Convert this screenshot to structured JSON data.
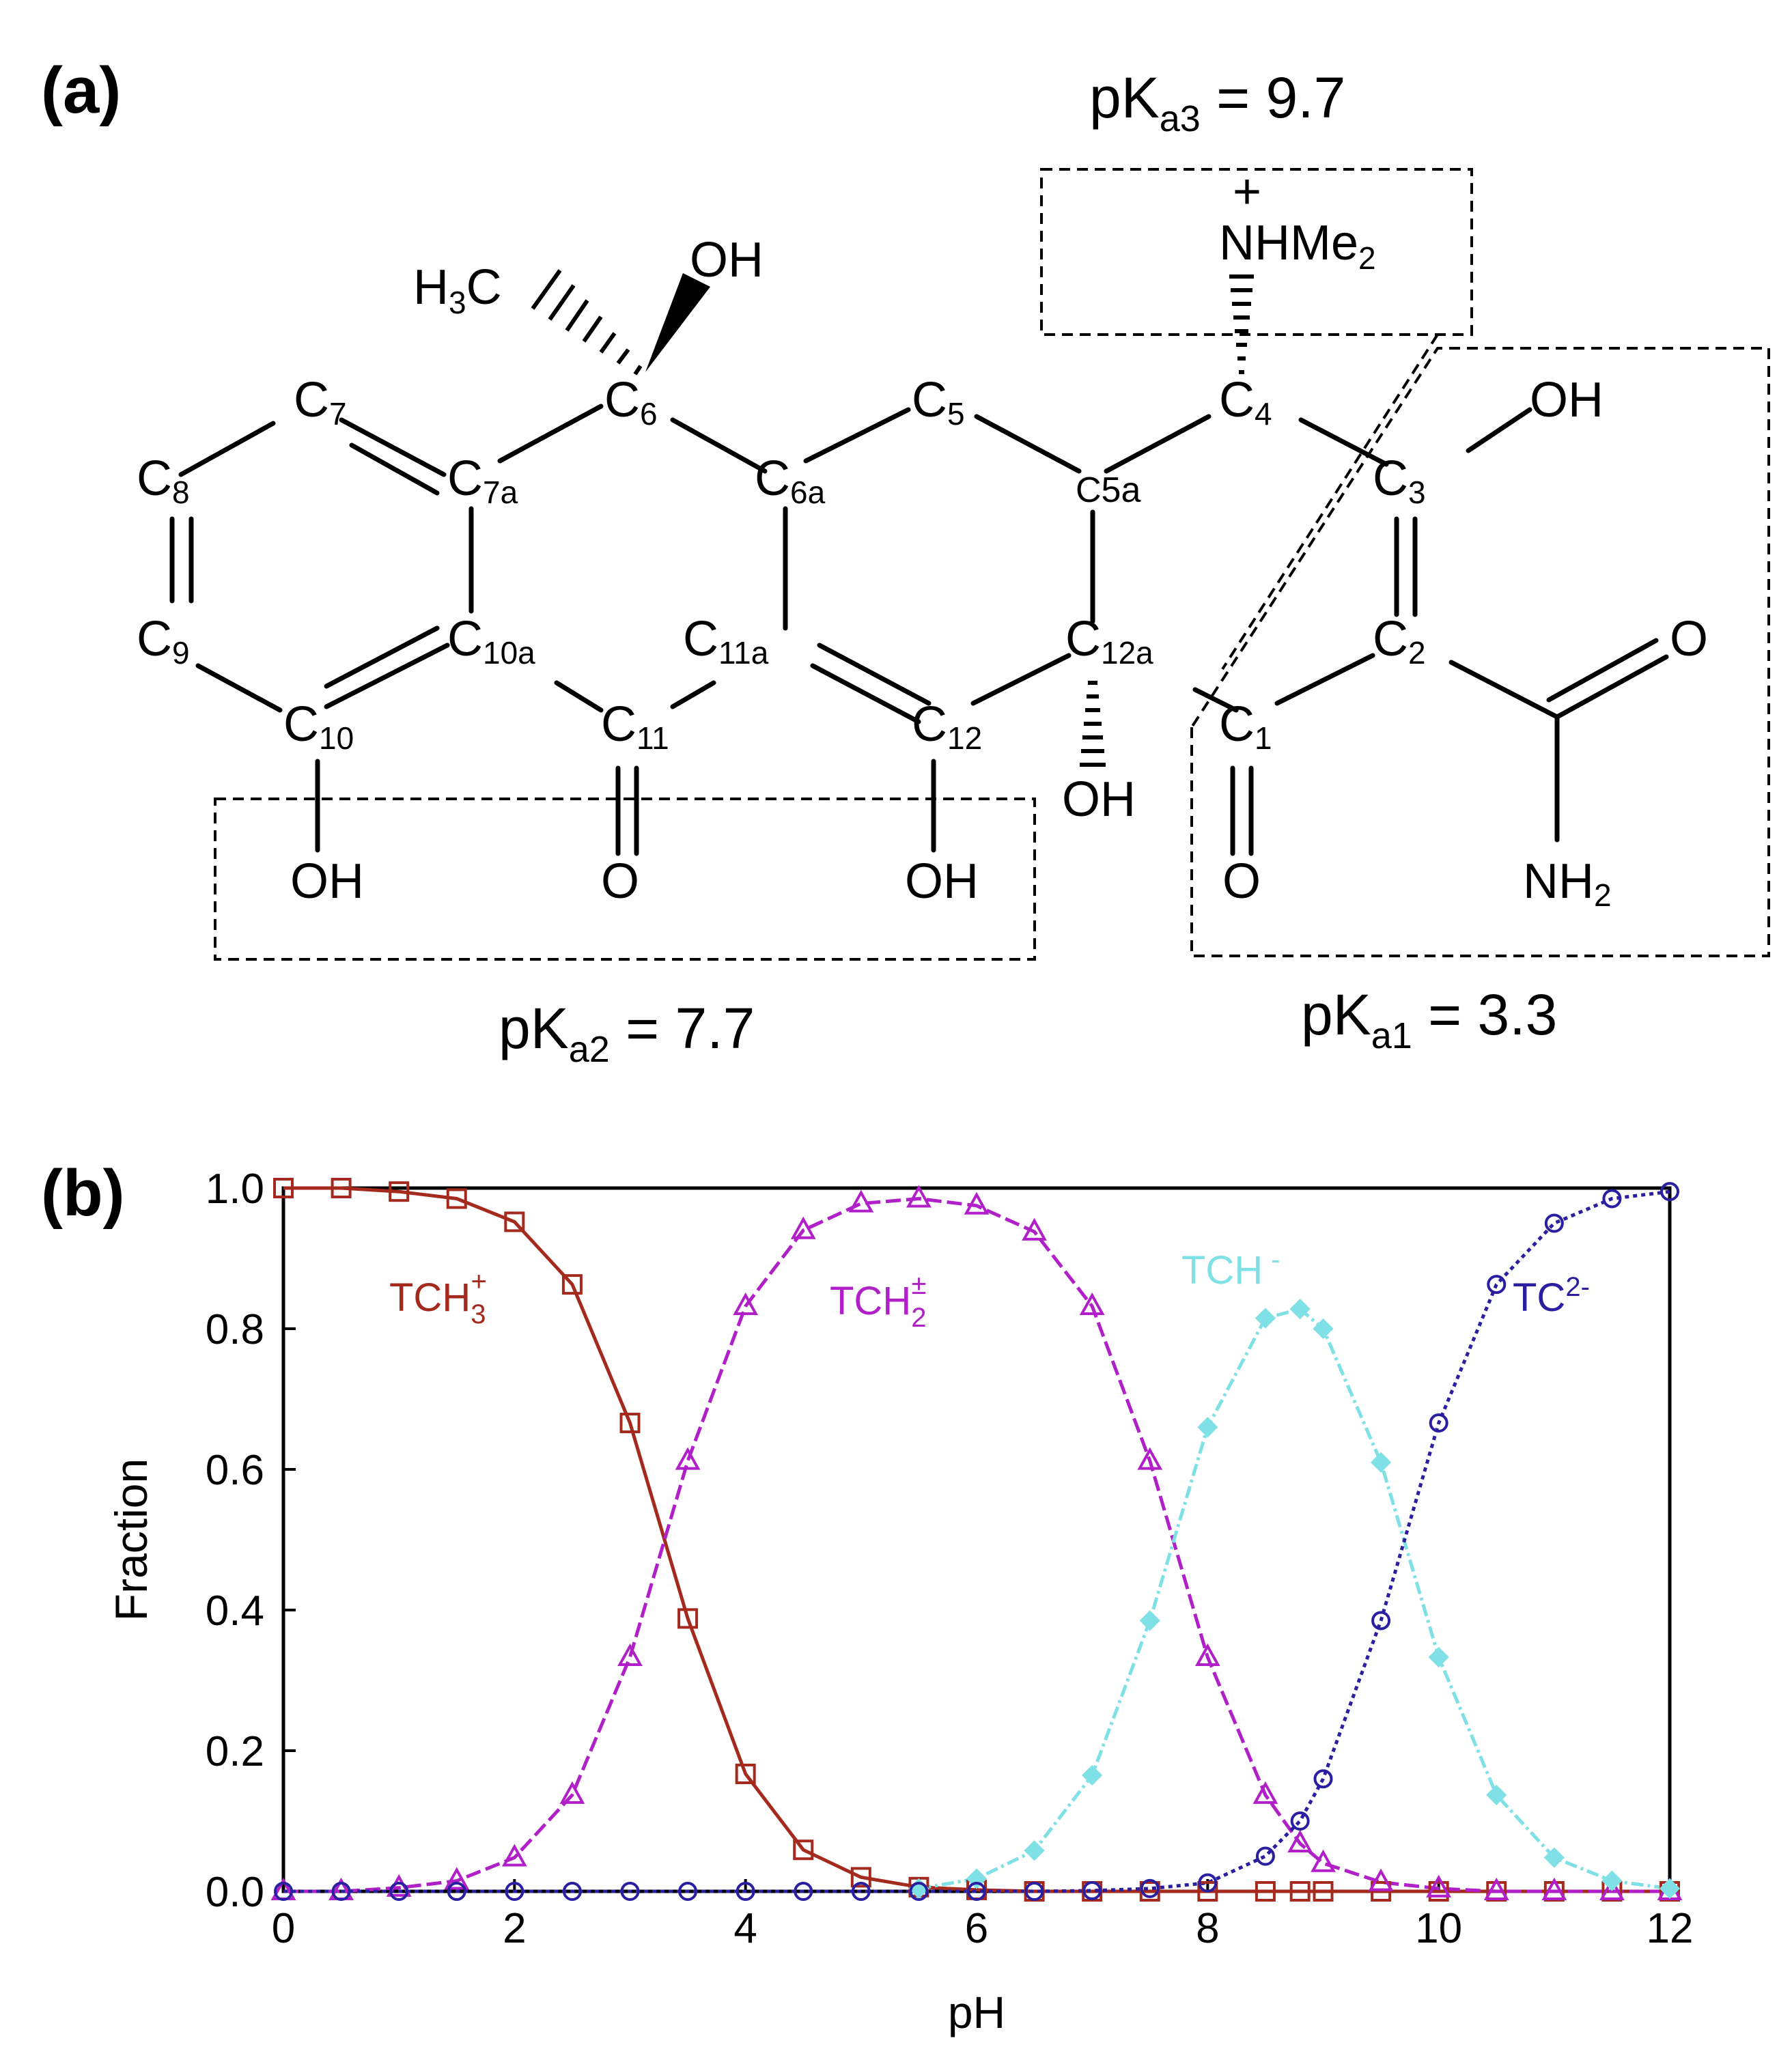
{
  "figure": {
    "panel_a_label": "(a)",
    "panel_b_label": "(b)"
  },
  "molecule": {
    "pka3": {
      "main": "pK",
      "sub": "a3",
      "value": " = 9.7"
    },
    "pka2": {
      "main": "pK",
      "sub": "a2",
      "value": " = 7.7"
    },
    "pka1": {
      "main": "pK",
      "sub": "a1",
      "value": " = 3.3"
    },
    "atoms": {
      "h3c": {
        "a": "H",
        "b": "3",
        "c": "C"
      },
      "oh_c6": "OH",
      "nhme2": {
        "charge": "+",
        "main": "NHMe",
        "sub": "2"
      },
      "c7": {
        "main": "C",
        "sub": "7"
      },
      "c6": {
        "main": "C",
        "sub": "6"
      },
      "c5": {
        "main": "C",
        "sub": "5"
      },
      "c4": {
        "main": "C",
        "sub": "4"
      },
      "oh_c3": "OH",
      "c8": {
        "main": "C",
        "sub": "8"
      },
      "c7a": {
        "main": "C",
        "sub": "7a"
      },
      "c6a": {
        "main": "C",
        "sub": "6a"
      },
      "c5a": "C5a",
      "c3": {
        "main": "C",
        "sub": "3"
      },
      "c9": {
        "main": "C",
        "sub": "9"
      },
      "c10a": {
        "main": "C",
        "sub": "10a"
      },
      "c11a": {
        "main": "C",
        "sub": "11a"
      },
      "c12a": {
        "main": "C",
        "sub": "12a"
      },
      "c2": {
        "main": "C",
        "sub": "2"
      },
      "o_c2": "O",
      "c10": {
        "main": "C",
        "sub": "10"
      },
      "c11": {
        "main": "C",
        "sub": "11"
      },
      "c12": {
        "main": "C",
        "sub": "12"
      },
      "c1": {
        "main": "C",
        "sub": "1"
      },
      "oh_c12a": "OH",
      "oh_c10": "OH",
      "o_c11": "O",
      "oh_c12": "OH",
      "o_c1": "O",
      "nh2": {
        "main": "NH",
        "sub": "2"
      }
    }
  },
  "chart_data": {
    "type": "line",
    "xlabel": "pH",
    "ylabel": "Fraction",
    "xlim": [
      0,
      12
    ],
    "ylim": [
      0,
      1
    ],
    "xticks": [
      "0",
      "2",
      "4",
      "6",
      "8",
      "10",
      "12"
    ],
    "yticks": [
      "0.0",
      "0.2",
      "0.4",
      "0.6",
      "0.8",
      "1.0"
    ],
    "series": [
      {
        "label": {
          "main": "TCH",
          "sub": "3",
          "sup": "+"
        },
        "color": "#a52a1e",
        "marker": "square",
        "dash": "",
        "x": [
          0,
          0.5,
          1,
          1.5,
          2,
          2.5,
          3,
          3.5,
          4,
          4.5,
          5,
          5.5,
          6,
          6.5,
          7,
          7.5,
          8,
          8.5,
          8.8,
          9,
          9.5,
          10,
          10.5,
          11,
          11.5,
          12
        ],
        "y": [
          1.0,
          1.0,
          0.995,
          0.985,
          0.952,
          0.863,
          0.666,
          0.388,
          0.167,
          0.059,
          0.02,
          0.006,
          0.002,
          0.0,
          0.0,
          0.0,
          0.0,
          0.0,
          0.0,
          0.0,
          0.0,
          0.0,
          0.0,
          0.0,
          0.0,
          0.0
        ]
      },
      {
        "label": {
          "main": "TCH",
          "sub": "2",
          "sup": "±"
        },
        "color": "#b01fc8",
        "marker": "triangle",
        "dash": "22 8",
        "x": [
          0,
          0.5,
          1,
          1.5,
          2,
          2.5,
          3,
          3.5,
          4,
          4.5,
          5,
          5.5,
          6,
          6.5,
          7,
          7.5,
          8,
          8.5,
          8.8,
          9,
          9.5,
          10,
          10.5,
          11,
          11.5,
          12
        ],
        "y": [
          0.0,
          0.0,
          0.005,
          0.015,
          0.048,
          0.137,
          0.333,
          0.612,
          0.832,
          0.94,
          0.978,
          0.985,
          0.975,
          0.938,
          0.832,
          0.612,
          0.333,
          0.137,
          0.068,
          0.04,
          0.013,
          0.004,
          0.0,
          0.0,
          0.0,
          0.0
        ]
      },
      {
        "label": {
          "main": "TCH",
          "sub": "",
          "sup": "-"
        },
        "color": "#7fe0e6",
        "marker": "diamond",
        "dash": "18 6 4 6",
        "x": [
          5.5,
          6,
          6.5,
          7,
          7.5,
          8,
          8.5,
          8.8,
          9,
          9.5,
          10,
          10.5,
          11,
          11.5,
          12
        ],
        "y": [
          0.004,
          0.018,
          0.058,
          0.165,
          0.385,
          0.66,
          0.815,
          0.828,
          0.8,
          0.61,
          0.333,
          0.137,
          0.048,
          0.015,
          0.004
        ]
      },
      {
        "label": {
          "main": "TC",
          "sub": "",
          "sup": "2-"
        },
        "color": "#2a1fa0",
        "marker": "circle",
        "dash": "6 6",
        "x": [
          0,
          0.5,
          1,
          1.5,
          2,
          2.5,
          3,
          3.5,
          4,
          4.5,
          5,
          5.5,
          6,
          6.5,
          7,
          7.5,
          8,
          8.5,
          8.8,
          9,
          9.5,
          10,
          10.5,
          11,
          11.5,
          12
        ],
        "y": [
          0.0,
          0.0,
          0.0,
          0.0,
          0.0,
          0.0,
          0.0,
          0.0,
          0.0,
          0.0,
          0.0,
          0.0,
          0.0,
          0.0,
          0.001,
          0.004,
          0.012,
          0.05,
          0.1,
          0.16,
          0.385,
          0.666,
          0.863,
          0.95,
          0.985,
          0.995
        ]
      }
    ]
  }
}
